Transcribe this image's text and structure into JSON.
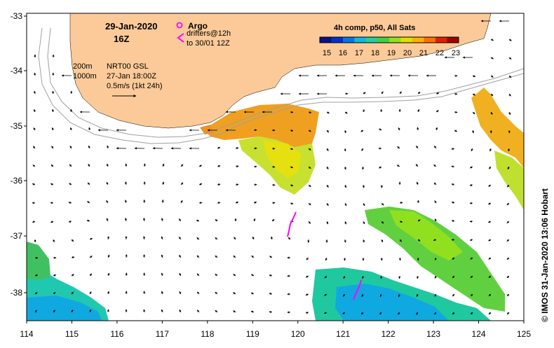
{
  "map": {
    "date": "29-Jan-2020",
    "hour": "16Z",
    "legend": {
      "argo_label": "Argo",
      "drifters_line1": "drifters@12h",
      "drifters_line2": "to 30/01 12Z",
      "argo_color": "#ff00ff"
    },
    "info": {
      "iso1": "200m",
      "iso2": "1000m",
      "product": "NRT00 GSL",
      "analysis_time": "27-Jan 18:00Z",
      "vector_scale": "0.5m/s (1kt 24h)"
    },
    "colorbar": {
      "title": "4h comp, p50, All Sats",
      "ticks": [
        "15",
        "16",
        "17",
        "18",
        "19",
        "20",
        "21",
        "22",
        "23"
      ],
      "colors": [
        "#08108a",
        "#0030d0",
        "#0078e8",
        "#10b8e0",
        "#20d0a0",
        "#40d040",
        "#90e020",
        "#e0e000",
        "#ffb000",
        "#ff7000",
        "#e02000",
        "#a00000"
      ]
    },
    "x_ticks": [
      "114",
      "115",
      "116",
      "117",
      "118",
      "119",
      "120",
      "121",
      "122",
      "123",
      "124",
      "125"
    ],
    "y_ticks": [
      "-33",
      "-34",
      "-35",
      "-36",
      "-37",
      "-38"
    ],
    "credit": "© IMOS 31-Jan-2020 13:06 Hobart",
    "land_color": "#fcca98"
  }
}
